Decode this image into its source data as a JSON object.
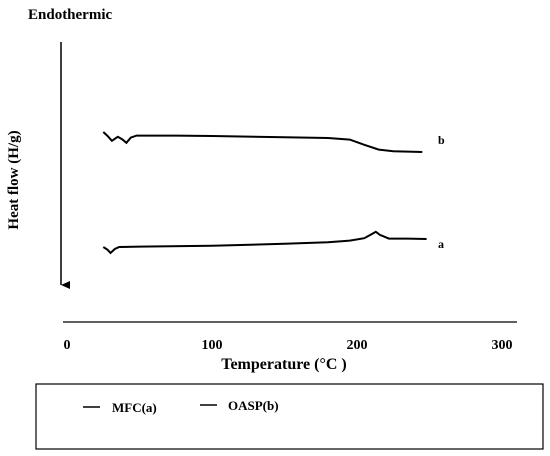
{
  "chart_data": {
    "type": "line",
    "title": "",
    "annotation": "Endothermic",
    "xlabel": "Temperature (°C )",
    "ylabel": "Heat flow (H/g)",
    "xlim": [
      0,
      300
    ],
    "x_ticks": [
      "0",
      "100",
      "200",
      "300"
    ],
    "grid": false,
    "legend": {
      "placement": "bottom",
      "entries": [
        "MFC(a)",
        "OASP(b)"
      ]
    },
    "series": [
      {
        "name": "MFC(a)",
        "label": "a",
        "points": [
          [
            25,
            0.0
          ],
          [
            28,
            0.7
          ],
          [
            30,
            1.5
          ],
          [
            33,
            0.5
          ],
          [
            36,
            0.0
          ],
          [
            50,
            -0.1
          ],
          [
            100,
            -0.3
          ],
          [
            150,
            -0.8
          ],
          [
            180,
            -1.2
          ],
          [
            195,
            -1.6
          ],
          [
            205,
            -2.2
          ],
          [
            210,
            -3.2
          ],
          [
            213,
            -3.8
          ],
          [
            216,
            -3.0
          ],
          [
            222,
            -2.1
          ],
          [
            235,
            -2.1
          ],
          [
            248,
            -2.0
          ]
        ]
      },
      {
        "name": "OASP(b)",
        "label": "b",
        "points": [
          [
            25,
            0.0
          ],
          [
            28,
            1.0
          ],
          [
            31,
            2.2
          ],
          [
            35,
            1.2
          ],
          [
            38,
            1.8
          ],
          [
            41,
            2.7
          ],
          [
            44,
            1.4
          ],
          [
            48,
            0.9
          ],
          [
            75,
            0.9
          ],
          [
            100,
            1.0
          ],
          [
            150,
            1.3
          ],
          [
            180,
            1.5
          ],
          [
            195,
            1.9
          ],
          [
            205,
            3.2
          ],
          [
            215,
            4.4
          ],
          [
            225,
            4.8
          ],
          [
            245,
            5.0
          ]
        ]
      }
    ]
  }
}
